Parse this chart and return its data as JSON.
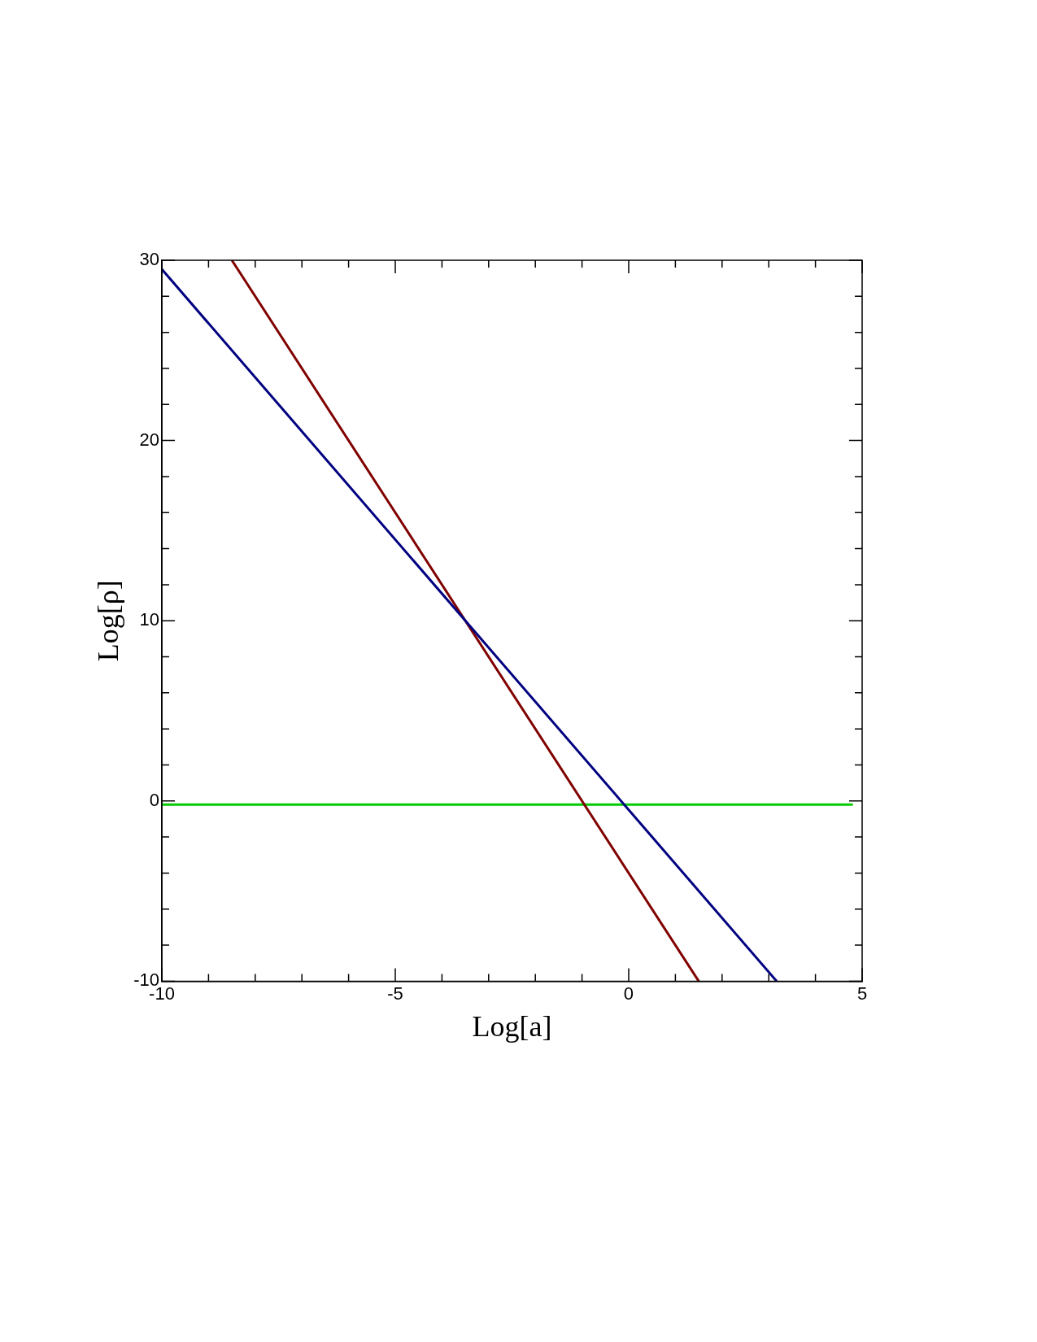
{
  "chart_data": {
    "type": "line",
    "xlabel": "Log[a]",
    "ylabel": "Log[ρ]",
    "xlim": [
      -10,
      5
    ],
    "ylim": [
      -10,
      30
    ],
    "xticks": [
      -10,
      {
        "value": -9,
        "label": null
      },
      {
        "value": -8,
        "label": null
      },
      {
        "value": -7,
        "label": null
      },
      {
        "value": -6,
        "label": null
      },
      -5,
      {
        "value": -4,
        "label": null
      },
      {
        "value": -3,
        "label": null
      },
      {
        "value": -2,
        "label": null
      },
      {
        "value": -1,
        "label": null
      },
      0,
      {
        "value": 1,
        "label": null
      },
      {
        "value": 2,
        "label": null
      },
      {
        "value": 3,
        "label": null
      },
      {
        "value": 4,
        "label": null
      },
      5
    ],
    "yticks": [
      -10,
      {
        "value": -8,
        "label": null
      },
      {
        "value": -6,
        "label": null
      },
      {
        "value": -4,
        "label": null
      },
      {
        "value": -2,
        "label": null
      },
      0,
      {
        "value": 2,
        "label": null
      },
      {
        "value": 4,
        "label": null
      },
      {
        "value": 6,
        "label": null
      },
      {
        "value": 8,
        "label": null
      },
      10,
      {
        "value": 12,
        "label": null
      },
      {
        "value": 14,
        "label": null
      },
      {
        "value": 16,
        "label": null
      },
      {
        "value": 18,
        "label": null
      },
      20,
      {
        "value": 22,
        "label": null
      },
      {
        "value": 24,
        "label": null
      },
      {
        "value": 26,
        "label": null
      },
      {
        "value": 28,
        "label": null
      },
      30
    ],
    "grid": false,
    "legend": false,
    "marker": "none",
    "line_style": "solid",
    "series": [
      {
        "color": "#000080",
        "x": [
          -10,
          3.17
        ],
        "values": [
          29.5,
          -10
        ]
      },
      {
        "color": "#800000",
        "x": [
          -8.5,
          1.5
        ],
        "values": [
          30,
          -10
        ]
      },
      {
        "color": "#00cc00",
        "x": [
          -10,
          4.8
        ],
        "values": [
          -0.2,
          -0.2
        ]
      }
    ]
  }
}
